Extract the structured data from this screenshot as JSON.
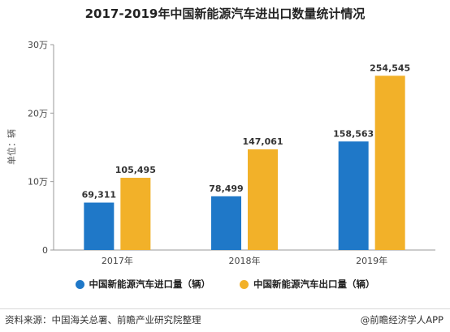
{
  "chart_data": {
    "type": "bar",
    "title": "2017-2019年中国新能源汽车进出口数量统计情况",
    "ylabel": "单位：辆",
    "categories": [
      "2017年",
      "2018年",
      "2019年"
    ],
    "series": [
      {
        "name": "中国新能源汽车进口量（辆）",
        "color": "#1f78c8",
        "values": [
          69311,
          78499,
          158563
        ],
        "labels": [
          "69,311",
          "78,499",
          "158,563"
        ]
      },
      {
        "name": "中国新能源汽车出口量（辆）",
        "color": "#f2b129",
        "values": [
          105495,
          147061,
          254545
        ],
        "labels": [
          "105,495",
          "147,061",
          "254,545"
        ]
      }
    ],
    "ylim": [
      0,
      300000
    ],
    "yticks": [
      {
        "value": 0,
        "label": "0"
      },
      {
        "value": 100000,
        "label": "10万"
      },
      {
        "value": 200000,
        "label": "20万"
      },
      {
        "value": 300000,
        "label": "30万"
      }
    ],
    "grid": false,
    "legend": "bottom"
  },
  "footer": {
    "source": "资料来源：中国海关总署、前瞻产业研究院整理",
    "brand": "@前瞻经济学人APP"
  }
}
